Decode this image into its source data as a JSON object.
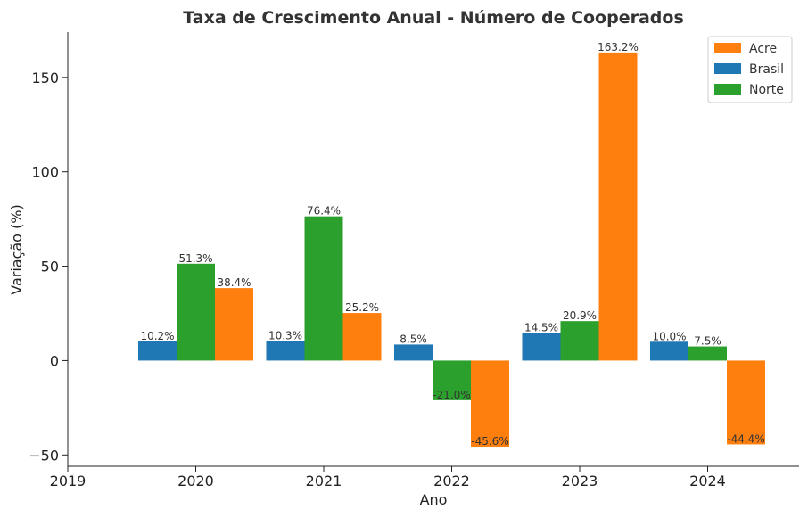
{
  "chart_data": {
    "type": "bar",
    "title": "Taxa de Crescimento Anual - Número de Cooperados",
    "xlabel": "Ano",
    "ylabel": "Variação (%)",
    "categories": [
      "2020",
      "2021",
      "2022",
      "2023",
      "2024"
    ],
    "x_ticks": [
      "2019",
      "2020",
      "2021",
      "2022",
      "2023",
      "2024"
    ],
    "y_ticks": [
      -50,
      0,
      50,
      100,
      150
    ],
    "y_tick_labels": [
      "−50",
      "0",
      "50",
      "100",
      "150"
    ],
    "ylim": [
      -56,
      174
    ],
    "legend_position": "top-right",
    "series": [
      {
        "name": "Brasil",
        "color": "#1f77b4",
        "values": [
          10.2,
          10.3,
          8.5,
          14.5,
          10.0
        ],
        "labels": [
          "10.2%",
          "10.3%",
          "8.5%",
          "14.5%",
          "10.0%"
        ]
      },
      {
        "name": "Norte",
        "color": "#2ca02c",
        "values": [
          51.3,
          76.4,
          -21.0,
          20.9,
          7.5
        ],
        "labels": [
          "51.3%",
          "76.4%",
          "-21.0%",
          "20.9%",
          "7.5%"
        ]
      },
      {
        "name": "Acre",
        "color": "#ff7f0e",
        "values": [
          38.4,
          25.2,
          -45.6,
          163.2,
          -44.4
        ],
        "labels": [
          "38.4%",
          "25.2%",
          "-45.6%",
          "163.2%",
          "-44.4%"
        ]
      }
    ],
    "legend_order": [
      "Acre",
      "Brasil",
      "Norte"
    ],
    "grid": false
  }
}
